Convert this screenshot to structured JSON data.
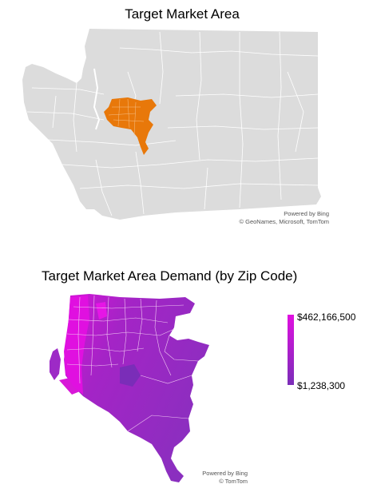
{
  "map1": {
    "title": "Target Market Area",
    "credit_line1": "Powered by Bing",
    "credit_line2": "© GeoNames, Microsoft, TomTom",
    "colors": {
      "state": "#dcdcdc",
      "boundary": "#ffffff",
      "target": "#e8780a"
    }
  },
  "map2": {
    "title": "Target Market Area Demand (by Zip Code)",
    "credit_line1": "Powered by Bing",
    "credit_line2": "© TomTom",
    "colors": {
      "high": "#e010e0",
      "low": "#7a2db8",
      "boundary": "#ffffff"
    }
  },
  "legend": {
    "max_label": "$462,166,500",
    "min_label": "$1,238,300"
  }
}
